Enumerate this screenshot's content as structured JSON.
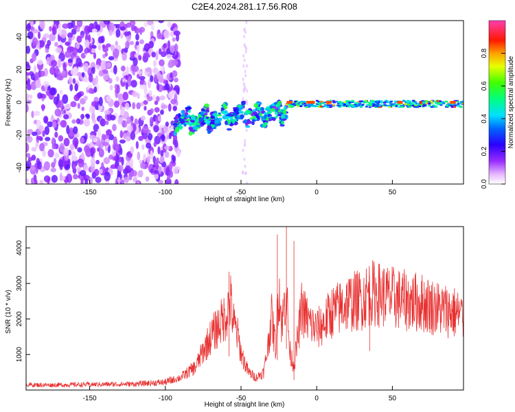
{
  "figure": {
    "title": "C2E4.2024.281.17.56.R08"
  },
  "chart_data": [
    {
      "type": "heatmap",
      "title": "C2E4.2024.281.17.56.R08",
      "xlabel": "Height of straight line (km)",
      "ylabel": "Frequency (Hz)",
      "xlim": [
        -192,
        97
      ],
      "ylim": [
        -50,
        50
      ],
      "x_ticks": [
        -150,
        -100,
        -50,
        0,
        50
      ],
      "y_ticks": [
        -40,
        -20,
        0,
        20,
        40
      ],
      "colorbar": {
        "label": "Normalized spectral amplitude",
        "range": [
          0.0,
          1.0
        ],
        "ticks": [
          0.0,
          0.2,
          0.4,
          0.6,
          0.8
        ],
        "tick_labels": [
          "0.0",
          "0.2",
          "0.4",
          "0.6",
          "0.8"
        ],
        "colormap": "white-magenta-blue-cyan-green-yellow-red-magenta"
      },
      "regions": [
        {
          "x_range": [
            -192,
            -94
          ],
          "freq_range": [
            -50,
            50
          ],
          "amplitude": 0.15,
          "pattern": "scattered noise"
        },
        {
          "x_range": [
            -94,
            -20
          ],
          "freq_range": [
            -10,
            10
          ],
          "amplitude": 0.4,
          "pattern": "rising streaks"
        },
        {
          "x_range": [
            -20,
            97
          ],
          "freq_range": [
            -3,
            3
          ],
          "amplitude": 0.5,
          "pattern": "narrow band near 0 Hz"
        }
      ]
    },
    {
      "type": "line",
      "xlabel": "Height of straight line (km)",
      "ylabel": "SNR (10 * v/v)",
      "xlim": [
        -192,
        97
      ],
      "ylim": [
        0,
        4600
      ],
      "x_ticks": [
        -150,
        -100,
        -50,
        0,
        50
      ],
      "y_ticks": [
        1000,
        2000,
        3000,
        4000
      ],
      "color": "#e83030",
      "series": [
        {
          "x": [
            -192,
            -180,
            -160,
            -140,
            -120,
            -100,
            -90,
            -80,
            -75,
            -70,
            -65,
            -60,
            -57,
            -55,
            -52,
            -50,
            -47,
            -45,
            -40,
            -35,
            -32,
            -30,
            -27,
            -25,
            -23,
            -20,
            -18,
            -15,
            -12,
            -10,
            -5,
            0,
            5,
            10,
            15,
            20,
            25,
            30,
            35,
            40,
            50,
            60,
            70,
            80,
            90,
            97
          ],
          "values": [
            150,
            140,
            150,
            160,
            170,
            220,
            350,
            650,
            1100,
            1500,
            1800,
            2100,
            2500,
            1900,
            1500,
            1050,
            700,
            500,
            350,
            500,
            1300,
            2100,
            1200,
            3000,
            1800,
            2900,
            1100,
            700,
            1600,
            2300,
            1900,
            1700,
            1900,
            2200,
            2300,
            2450,
            2500,
            2550,
            2750,
            2700,
            2600,
            2500,
            2450,
            2300,
            2200,
            2050
          ],
          "peaks": [
            {
              "x": -58,
              "y": 3330
            },
            {
              "x": -26,
              "y": 4380
            },
            {
              "x": -20,
              "y": 4600
            },
            {
              "x": -15,
              "y": 4200
            },
            {
              "x": 35,
              "y": 3200
            }
          ]
        }
      ]
    }
  ]
}
